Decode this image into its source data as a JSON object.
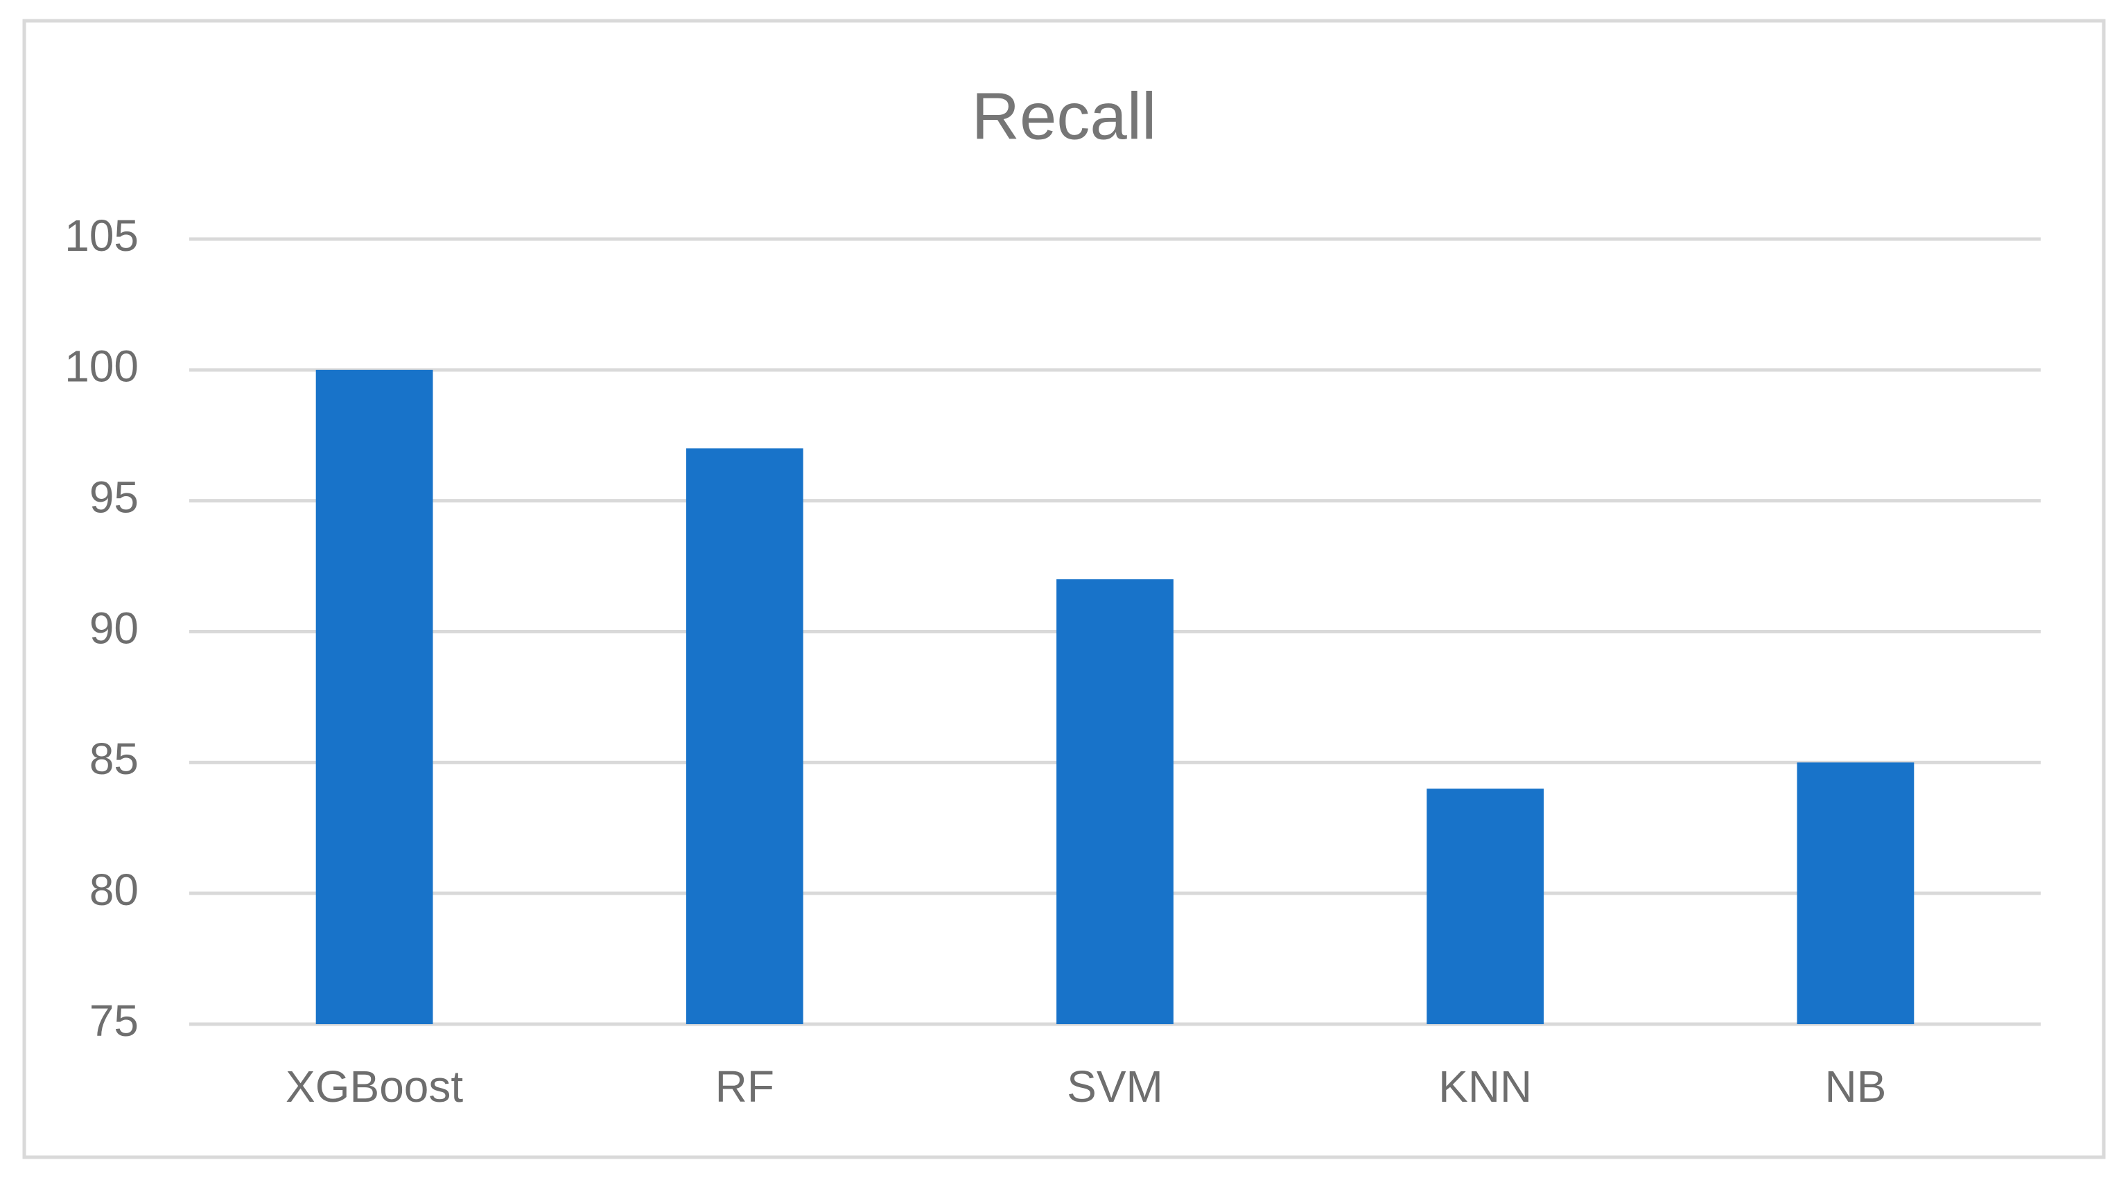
{
  "chart_data": {
    "type": "bar",
    "title": "Recall",
    "categories": [
      "XGBoost",
      "RF",
      "SVM",
      "KNN",
      "NB"
    ],
    "values": [
      100,
      97,
      92,
      84,
      85
    ],
    "color": "#1873c9",
    "ylim": [
      75,
      105
    ],
    "yticks": [
      75,
      80,
      85,
      90,
      95,
      100,
      105
    ],
    "grid": true
  }
}
